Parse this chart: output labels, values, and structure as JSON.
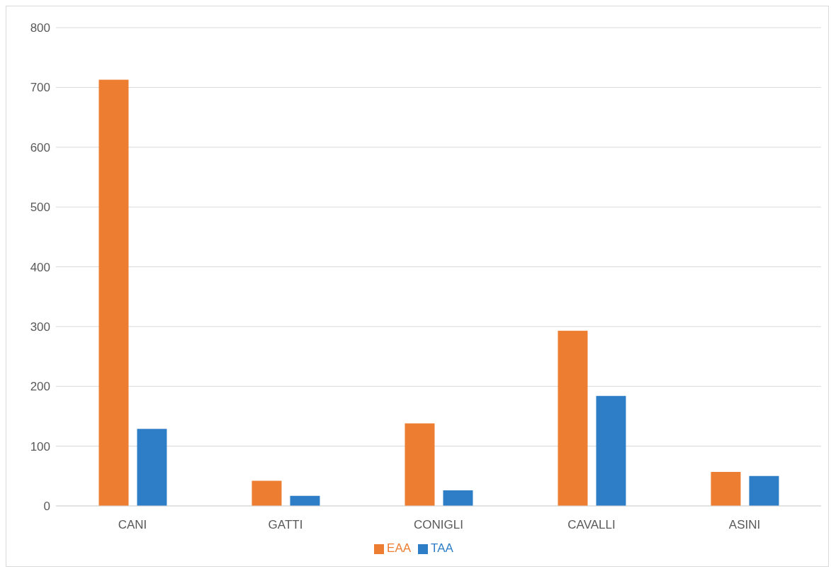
{
  "chart_data": {
    "type": "bar",
    "categories": [
      "CANI",
      "GATTI",
      "CONIGLI",
      "CAVALLI",
      "ASINI"
    ],
    "series": [
      {
        "name": "EAA",
        "color": "#ed7d31",
        "values": [
          713,
          42,
          138,
          293,
          57
        ]
      },
      {
        "name": "TAA",
        "color": "#2e7dc7",
        "values": [
          129,
          17,
          26,
          184,
          50
        ]
      }
    ],
    "ylim": [
      0,
      800
    ],
    "yticks": [
      0,
      100,
      200,
      300,
      400,
      500,
      600,
      700,
      800
    ],
    "grid": "y",
    "legend": "bottom"
  }
}
